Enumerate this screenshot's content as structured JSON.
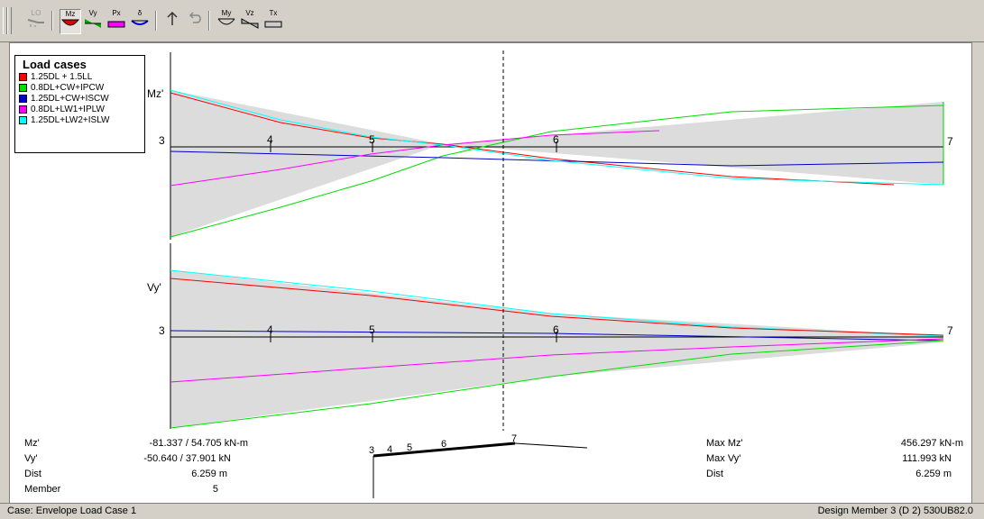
{
  "toolbar": {
    "buttons": [
      {
        "id": "lo",
        "label": "LO"
      },
      {
        "id": "mz",
        "label": "Mz"
      },
      {
        "id": "vy",
        "label": "Vy"
      },
      {
        "id": "px",
        "label": "Px"
      },
      {
        "id": "delta",
        "label": "δ"
      },
      {
        "id": "up",
        "label": ""
      },
      {
        "id": "undo",
        "label": ""
      },
      {
        "id": "my",
        "label": "My"
      },
      {
        "id": "vz",
        "label": "Vz"
      },
      {
        "id": "tx",
        "label": "Tx"
      }
    ],
    "colors": {
      "active_bg": "#e4e2dc"
    }
  },
  "legend": {
    "title": "Load cases",
    "items": [
      {
        "label": "1.25DL + 1.5LL",
        "color": "#ff0000"
      },
      {
        "label": "0.8DL+CW+IPCW",
        "color": "#00dd00"
      },
      {
        "label": "1.25DL+CW+ISCW",
        "color": "#0000cc"
      },
      {
        "label": "0.8DL+LW1+IPLW",
        "color": "#ff00ff"
      },
      {
        "label": "1.25DL+LW2+ISLW",
        "color": "#00ffff"
      }
    ]
  },
  "diagram": {
    "mz": {
      "axis_label": "Mz'",
      "start_node": "3",
      "end_node": "7",
      "node_labels": [
        "4",
        "5",
        "6"
      ]
    },
    "vy": {
      "axis_label": "Vy'",
      "start_node": "3",
      "end_node": "7",
      "node_labels": [
        "4",
        "5",
        "6"
      ]
    }
  },
  "readout": {
    "mz_label": "Mz'",
    "mz_value": "-81.337 / 54.705 kN-m",
    "vy_label": "Vy'",
    "vy_value": "-50.640 / 37.901 kN",
    "dist_label": "Dist",
    "dist_value": "6.259 m",
    "member_label": "Member",
    "member_value": "5",
    "max_mz_label": "Max Mz'",
    "max_mz_value": "456.297 kN-m",
    "max_vy_label": "Max Vy'",
    "max_vy_value": "111.993 kN",
    "max_dist_label": "Dist",
    "max_dist_value": "6.259 m"
  },
  "mini_frame": {
    "nodes": [
      "3",
      "4",
      "5",
      "6",
      "7"
    ]
  },
  "status": {
    "left": "Case: Envelope Load Case 1",
    "right": "Design Member  3 (D 2)  530UB82.0"
  }
}
